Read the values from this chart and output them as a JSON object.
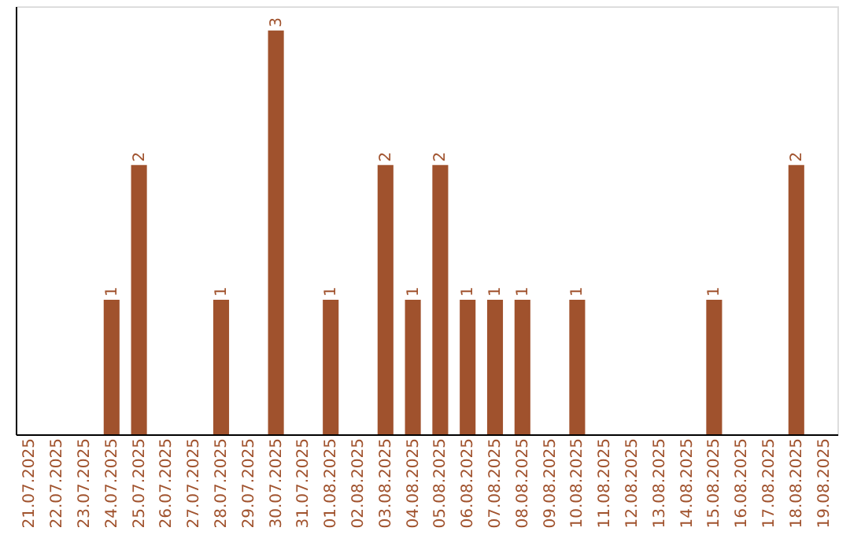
{
  "chart_data": {
    "type": "bar",
    "categories": [
      "21.07.2025",
      "22.07.2025",
      "23.07.2025",
      "24.07.2025",
      "25.07.2025",
      "26.07.2025",
      "27.07.2025",
      "28.07.2025",
      "29.07.2025",
      "30.07.2025",
      "31.07.2025",
      "01.08.2025",
      "02.08.2025",
      "03.08.2025",
      "04.08.2025",
      "05.08.2025",
      "06.08.2025",
      "07.08.2025",
      "08.08.2025",
      "09.08.2025",
      "10.08.2025",
      "11.08.2025",
      "12.08.2025",
      "13.08.2025",
      "14.08.2025",
      "15.08.2025",
      "16.08.2025",
      "17.08.2025",
      "18.08.2025",
      "19.08.2025"
    ],
    "values": [
      0,
      0,
      0,
      1,
      2,
      0,
      0,
      1,
      0,
      3,
      0,
      1,
      0,
      2,
      1,
      2,
      1,
      1,
      1,
      0,
      1,
      0,
      0,
      0,
      0,
      1,
      0,
      0,
      2,
      0
    ],
    "value_labels": [
      null,
      null,
      null,
      "1",
      "2",
      null,
      null,
      "1",
      null,
      "3",
      null,
      "1",
      null,
      "2",
      "1",
      "2",
      "1",
      "1",
      "1",
      null,
      "1",
      null,
      null,
      null,
      null,
      "1",
      null,
      null,
      "2",
      null
    ],
    "color": "#a0522d",
    "tick_labels": "x",
    "grid": false
  }
}
